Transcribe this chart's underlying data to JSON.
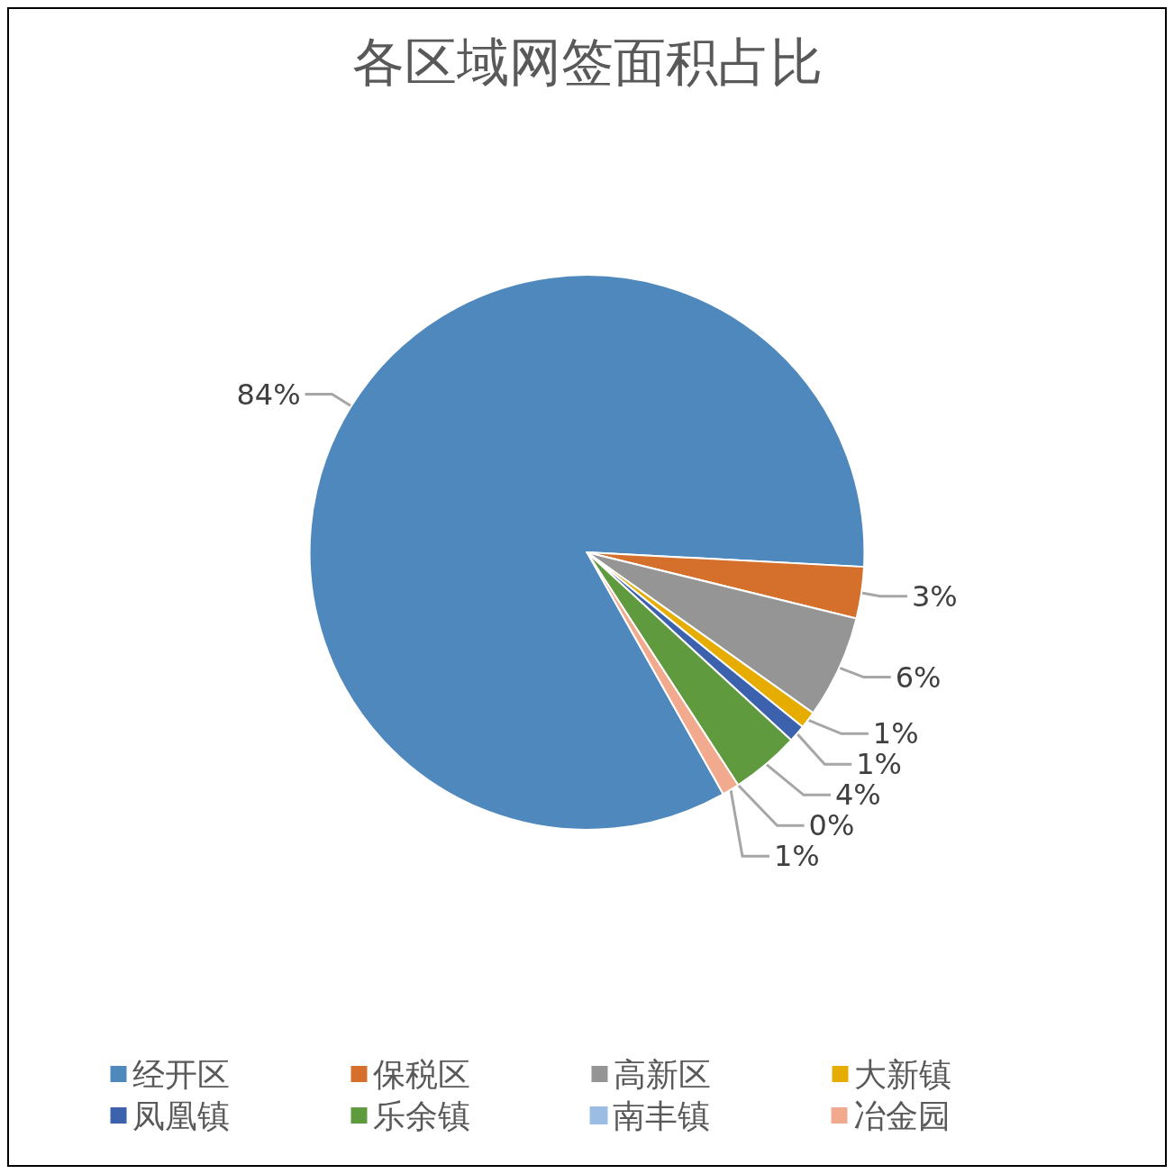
{
  "chart_data": {
    "type": "pie",
    "title": "各区域网签面积占比",
    "categories": [
      "经开区",
      "保税区",
      "高新区",
      "大新镇",
      "凤凰镇",
      "乐余镇",
      "南丰镇",
      "冶金园"
    ],
    "values": [
      84,
      3,
      6,
      1,
      1,
      4,
      0,
      1
    ],
    "value_labels": [
      "84%",
      "3%",
      "6%",
      "1%",
      "1%",
      "4%",
      "0%",
      "1%"
    ],
    "colors": [
      "#4f88bc",
      "#d4702b",
      "#959595",
      "#e6ac00",
      "#3d62ad",
      "#5f9a3f",
      "#9bbde3",
      "#f2aa8e"
    ],
    "legend": "bottom"
  }
}
